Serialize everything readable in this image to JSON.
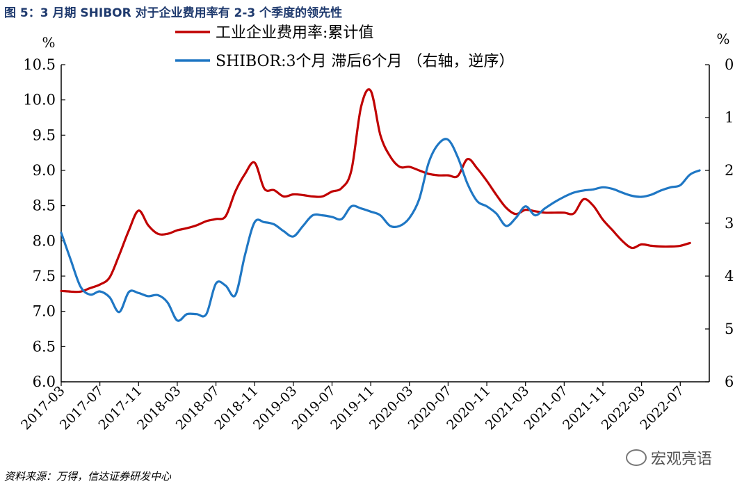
{
  "figure_title": "图 5：3 月期 SHIBOR 对于企业费用率有 2-3 个季度的领先性",
  "source_note": "资料来源：万得，信达证券研发中心",
  "watermark": "宏观亮语",
  "colors": {
    "red": "#c00000",
    "blue": "#1f77c4",
    "title": "#1f3a6e"
  },
  "chart_data": {
    "type": "line",
    "left_unit": "%",
    "right_unit": "%",
    "ylim_left": [
      6.0,
      10.5
    ],
    "ylim_right": [
      6,
      0
    ],
    "right_axis_reversed": true,
    "left_ticks": [
      "6.0",
      "6.5",
      "7.0",
      "7.5",
      "8.0",
      "8.5",
      "9.0",
      "9.5",
      "10.0",
      "10.5"
    ],
    "right_ticks": [
      "0",
      "1",
      "2",
      "3",
      "4",
      "5",
      "6"
    ],
    "x_tick_labels": [
      "2017-03",
      "2017-07",
      "2017-11",
      "2018-03",
      "2018-07",
      "2018-11",
      "2019-03",
      "2019-07",
      "2019-11",
      "2020-03",
      "2020-07",
      "2020-11",
      "2021-03",
      "2021-07",
      "2021-11",
      "2022-03",
      "2022-07"
    ],
    "x_start": "2017-03",
    "legend": [
      "工业企业费用率:累计值",
      "SHIBOR:3个月 滞后6个月 （右轴，逆序）"
    ],
    "legend_position": "top-center",
    "series": [
      {
        "name": "工业企业费用率:累计值",
        "axis": "left",
        "color": "#c00000",
        "x": [
          "2017-03",
          "2017-04",
          "2017-05",
          "2017-06",
          "2017-07",
          "2017-08",
          "2017-09",
          "2017-10",
          "2017-11",
          "2017-12",
          "2018-01",
          "2018-02",
          "2018-03",
          "2018-04",
          "2018-05",
          "2018-06",
          "2018-07",
          "2018-08",
          "2018-09",
          "2018-10",
          "2018-11",
          "2018-12",
          "2019-01",
          "2019-02",
          "2019-03",
          "2019-04",
          "2019-05",
          "2019-06",
          "2019-07",
          "2019-08",
          "2019-09",
          "2019-10",
          "2019-11",
          "2019-12",
          "2020-01",
          "2020-02",
          "2020-03",
          "2020-04",
          "2020-05",
          "2020-06",
          "2020-07",
          "2020-08",
          "2020-09",
          "2020-10",
          "2020-11",
          "2020-12",
          "2021-01",
          "2021-02",
          "2021-03",
          "2021-04",
          "2021-05",
          "2021-06",
          "2021-07",
          "2021-08",
          "2021-09",
          "2021-10",
          "2021-11",
          "2021-12",
          "2022-01",
          "2022-02",
          "2022-03",
          "2022-04",
          "2022-05",
          "2022-06",
          "2022-07",
          "2022-08"
        ],
        "values": [
          7.29,
          7.28,
          7.28,
          7.33,
          7.38,
          7.48,
          7.8,
          8.15,
          8.43,
          8.22,
          8.1,
          8.1,
          8.15,
          8.18,
          8.22,
          8.28,
          8.31,
          8.35,
          8.7,
          8.95,
          9.11,
          8.74,
          8.72,
          8.63,
          8.66,
          8.65,
          8.63,
          8.63,
          8.7,
          8.75,
          9.0,
          9.9,
          10.13,
          9.5,
          9.2,
          9.05,
          9.05,
          9.0,
          8.95,
          8.93,
          8.93,
          8.92,
          9.16,
          9.03,
          8.85,
          8.65,
          8.47,
          8.38,
          8.44,
          8.42,
          8.4,
          8.4,
          8.4,
          8.39,
          8.59,
          8.5,
          8.3,
          8.15,
          8.0,
          7.9,
          7.95,
          7.93,
          7.92,
          7.92,
          7.93,
          7.97
        ]
      },
      {
        "name": "SHIBOR:3个月 滞后6个月 （右轴，逆序）",
        "axis": "right",
        "color": "#1f77c4",
        "x": [
          "2017-03",
          "2017-04",
          "2017-05",
          "2017-06",
          "2017-07",
          "2017-08",
          "2017-09",
          "2017-10",
          "2017-11",
          "2017-12",
          "2018-01",
          "2018-02",
          "2018-03",
          "2018-04",
          "2018-05",
          "2018-06",
          "2018-07",
          "2018-08",
          "2018-09",
          "2018-10",
          "2018-11",
          "2018-12",
          "2019-01",
          "2019-02",
          "2019-03",
          "2019-04",
          "2019-05",
          "2019-06",
          "2019-07",
          "2019-08",
          "2019-09",
          "2019-10",
          "2019-11",
          "2019-12",
          "2020-01",
          "2020-02",
          "2020-03",
          "2020-04",
          "2020-05",
          "2020-06",
          "2020-07",
          "2020-08",
          "2020-09",
          "2020-10",
          "2020-11",
          "2020-12",
          "2021-01",
          "2021-02",
          "2021-03",
          "2021-04",
          "2021-05",
          "2021-06",
          "2021-07",
          "2021-08",
          "2021-09",
          "2021-10",
          "2021-11",
          "2021-12",
          "2022-01",
          "2022-02",
          "2022-03",
          "2022-04",
          "2022-05",
          "2022-06",
          "2022-07",
          "2022-08",
          "2022-09"
        ],
        "values": [
          3.18,
          3.7,
          4.2,
          4.35,
          4.29,
          4.4,
          4.68,
          4.3,
          4.32,
          4.38,
          4.36,
          4.5,
          4.84,
          4.72,
          4.72,
          4.72,
          4.14,
          4.18,
          4.36,
          3.6,
          2.98,
          2.98,
          3.02,
          3.15,
          3.25,
          3.05,
          2.85,
          2.85,
          2.88,
          2.92,
          2.68,
          2.72,
          2.78,
          2.85,
          3.05,
          3.05,
          2.9,
          2.55,
          1.85,
          1.5,
          1.42,
          1.75,
          2.25,
          2.58,
          2.68,
          2.82,
          3.05,
          2.9,
          2.68,
          2.85,
          2.72,
          2.6,
          2.5,
          2.42,
          2.38,
          2.36,
          2.32,
          2.35,
          2.42,
          2.48,
          2.5,
          2.46,
          2.38,
          2.32,
          2.28,
          2.08,
          2.0
        ]
      }
    ]
  }
}
